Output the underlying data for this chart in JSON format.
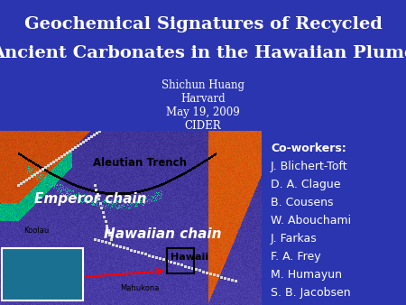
{
  "title_line1": "Geochemical Signatures of Recycled",
  "title_line2": "Ancient Carbonates in the Hawaiian Plume",
  "author": "Shichun Huang",
  "institution": "Harvard",
  "date": "May 19, 2009",
  "venue": "CIDER",
  "coworkers_header": "Co-workers:",
  "coworkers": [
    "J. Blichert-Toft",
    "D. A. Clague",
    "B. Cousens",
    "W. Abouchami",
    "J. Farkas",
    "F. A. Frey",
    "M. Humayun",
    "S. B. Jacobsen"
  ],
  "bg_color": "#2b35b0",
  "title_color": "#ffffff",
  "text_color": "#ffffff",
  "map_label_aleutian": "Aleutian Trench",
  "map_label_emperor": "Emperor chain",
  "map_label_hawaiian": "Hawaiian chain",
  "map_label_hawaii": "Hawaii",
  "map_label_koolau": "Koolau",
  "map_label_mahukona": "Mahukona"
}
